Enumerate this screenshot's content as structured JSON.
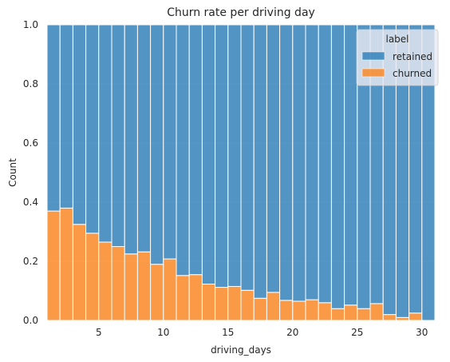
{
  "chart_data": {
    "type": "bar",
    "stacked": "fill",
    "title": "Churn rate per driving day",
    "xlabel": "driving_days",
    "ylabel": "Count",
    "xlim": [
      1,
      31
    ],
    "ylim": [
      0,
      1
    ],
    "xticks": [
      5,
      10,
      15,
      20,
      25,
      30
    ],
    "yticks": [
      0.0,
      0.2,
      0.4,
      0.6,
      0.8,
      1.0
    ],
    "ytick_labels": [
      "0.0",
      "0.2",
      "0.4",
      "0.6",
      "0.8",
      "1.0"
    ],
    "grid": true,
    "legend": {
      "title": "label",
      "position": "top-right"
    },
    "categories": [
      1,
      2,
      3,
      4,
      5,
      6,
      7,
      8,
      9,
      10,
      11,
      12,
      13,
      14,
      15,
      16,
      17,
      18,
      19,
      20,
      21,
      22,
      23,
      24,
      25,
      26,
      27,
      28,
      29,
      30
    ],
    "series": [
      {
        "name": "retained",
        "color": "#1f77b4",
        "values": [
          0.63,
          0.62,
          0.675,
          0.705,
          0.735,
          0.75,
          0.775,
          0.768,
          0.81,
          0.792,
          0.848,
          0.845,
          0.877,
          0.888,
          0.885,
          0.898,
          0.925,
          0.905,
          0.932,
          0.935,
          0.93,
          0.94,
          0.96,
          0.948,
          0.96,
          0.943,
          0.98,
          0.99,
          0.975,
          1.0
        ]
      },
      {
        "name": "churned",
        "color": "#ff7f0e",
        "values": [
          0.37,
          0.38,
          0.325,
          0.295,
          0.265,
          0.25,
          0.225,
          0.232,
          0.19,
          0.208,
          0.152,
          0.155,
          0.123,
          0.112,
          0.115,
          0.102,
          0.075,
          0.095,
          0.068,
          0.065,
          0.07,
          0.06,
          0.04,
          0.052,
          0.04,
          0.057,
          0.02,
          0.01,
          0.025,
          0.0
        ]
      }
    ]
  }
}
